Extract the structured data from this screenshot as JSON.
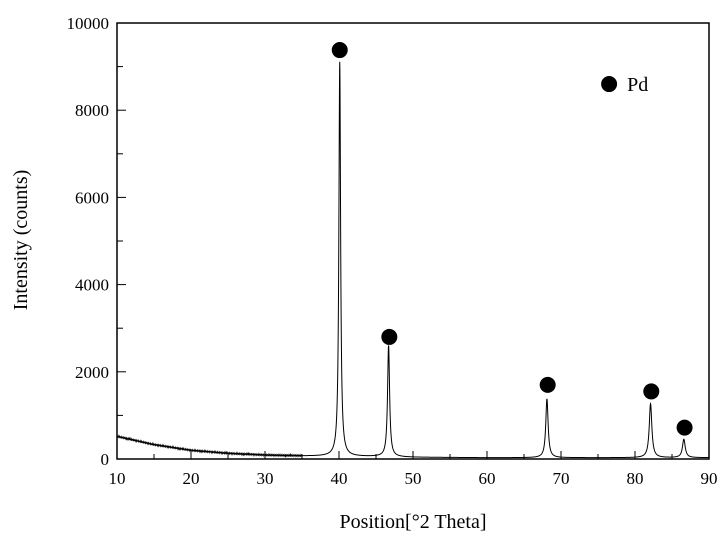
{
  "chart_data": {
    "type": "line",
    "title": "",
    "xlabel": "Position[°2 Theta]",
    "xlabel_parts": {
      "prefix": "Position[",
      "sup": "o",
      "suffix": "2 Theta]"
    },
    "ylabel": "Intensity (counts)",
    "xlim": [
      10,
      90
    ],
    "ylim": [
      0,
      10000
    ],
    "xticks": [
      10,
      20,
      30,
      40,
      50,
      60,
      70,
      80,
      90
    ],
    "yticks": [
      0,
      2000,
      4000,
      6000,
      8000,
      10000
    ],
    "grid": false,
    "legend": {
      "placement": "top-right",
      "entries": [
        {
          "label": "Pd",
          "marker": "filled-circle"
        }
      ]
    },
    "background": {
      "x": [
        10,
        15,
        20,
        25,
        30,
        35,
        40,
        45,
        50,
        60,
        70,
        80,
        90
      ],
      "y": [
        520,
        330,
        200,
        130,
        90,
        70,
        60,
        55,
        40,
        30,
        30,
        30,
        30
      ]
    },
    "peaks": [
      {
        "position": 40.1,
        "height": 9050,
        "width": 0.28,
        "label": "Pd"
      },
      {
        "position": 46.7,
        "height": 2550,
        "width": 0.33,
        "label": "Pd"
      },
      {
        "position": 68.1,
        "height": 1350,
        "width": 0.38,
        "label": "Pd"
      },
      {
        "position": 82.1,
        "height": 1240,
        "width": 0.42,
        "label": "Pd"
      },
      {
        "position": 86.6,
        "height": 420,
        "width": 0.45,
        "label": "Pd"
      }
    ],
    "markers": [
      {
        "x": 40.1,
        "y": 9380
      },
      {
        "x": 46.8,
        "y": 2800
      },
      {
        "x": 68.2,
        "y": 1700
      },
      {
        "x": 82.2,
        "y": 1550
      },
      {
        "x": 86.7,
        "y": 720
      }
    ],
    "legend_marker": {
      "x": 76.5,
      "y": 8600
    }
  }
}
